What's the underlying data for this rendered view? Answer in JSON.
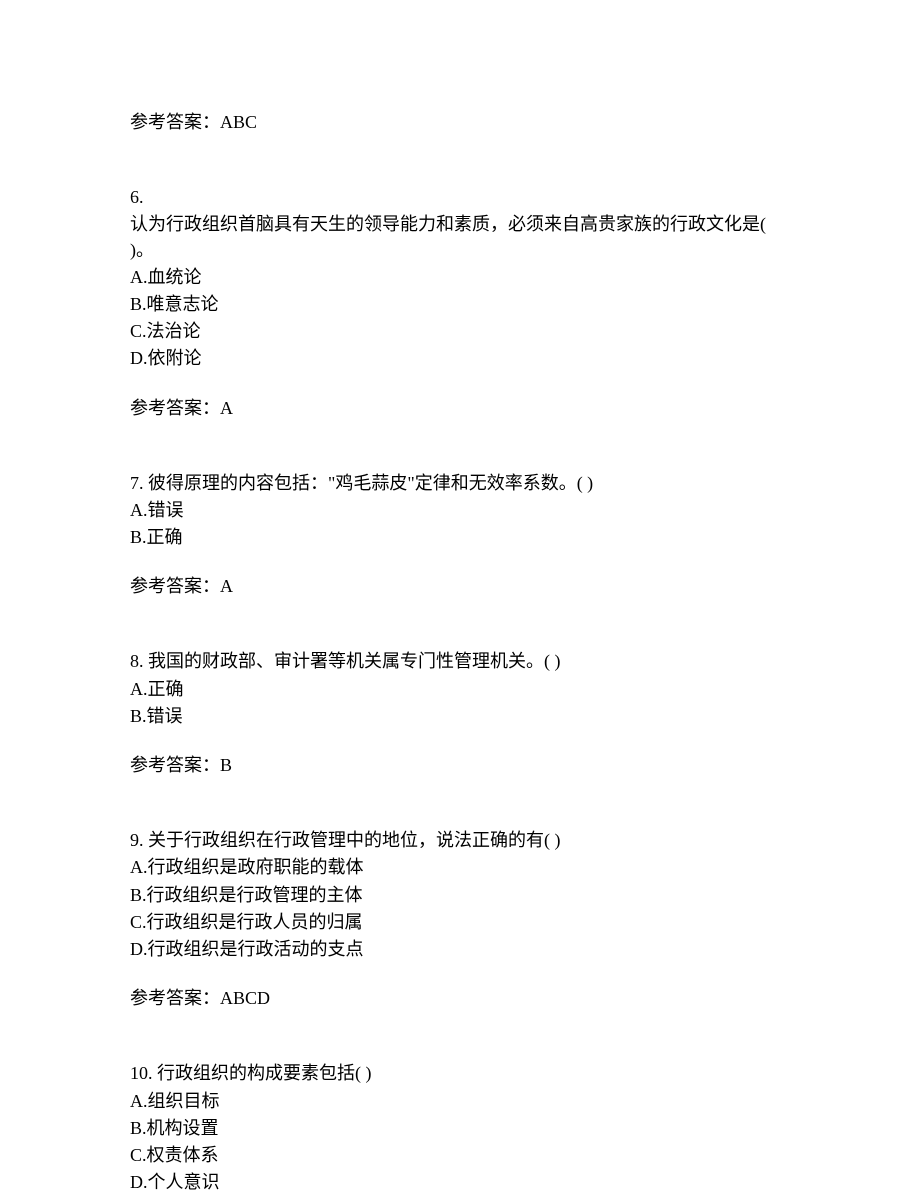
{
  "font_family": "SimSun",
  "font_size_pt": 14,
  "text_color": "#000000",
  "background_color": "#ffffff",
  "answer_label": "参考答案：",
  "top_answer": "参考答案：ABC",
  "questions": [
    {
      "number": "6.",
      "text": "认为行政组织首脑具有天生的领导能力和素质，必须来自高贵家族的行政文化是(  )。",
      "options": [
        "A.血统论",
        "B.唯意志论",
        "C.法治论",
        "D.依附论"
      ],
      "answer": "参考答案：A"
    },
    {
      "number": "7. ",
      "text": "彼得原理的内容包括：\"鸡毛蒜皮\"定律和无效率系数。(  )",
      "options": [
        "A.错误",
        "B.正确"
      ],
      "answer": "参考答案：A"
    },
    {
      "number": "8. ",
      "text": "我国的财政部、审计署等机关属专门性管理机关。(  )",
      "options": [
        "A.正确",
        "B.错误"
      ],
      "answer": "参考答案：B"
    },
    {
      "number": "9. ",
      "text": "关于行政组织在行政管理中的地位，说法正确的有(  )",
      "options": [
        "A.行政组织是政府职能的载体",
        "B.行政组织是行政管理的主体",
        "C.行政组织是行政人员的归属",
        "D.行政组织是行政活动的支点"
      ],
      "answer": "参考答案：ABCD"
    },
    {
      "number": "10. ",
      "text": "行政组织的构成要素包括(  )",
      "options": [
        "A.组织目标",
        "B.机构设置",
        "C.权责体系",
        "D.个人意识"
      ],
      "answer": ""
    }
  ]
}
